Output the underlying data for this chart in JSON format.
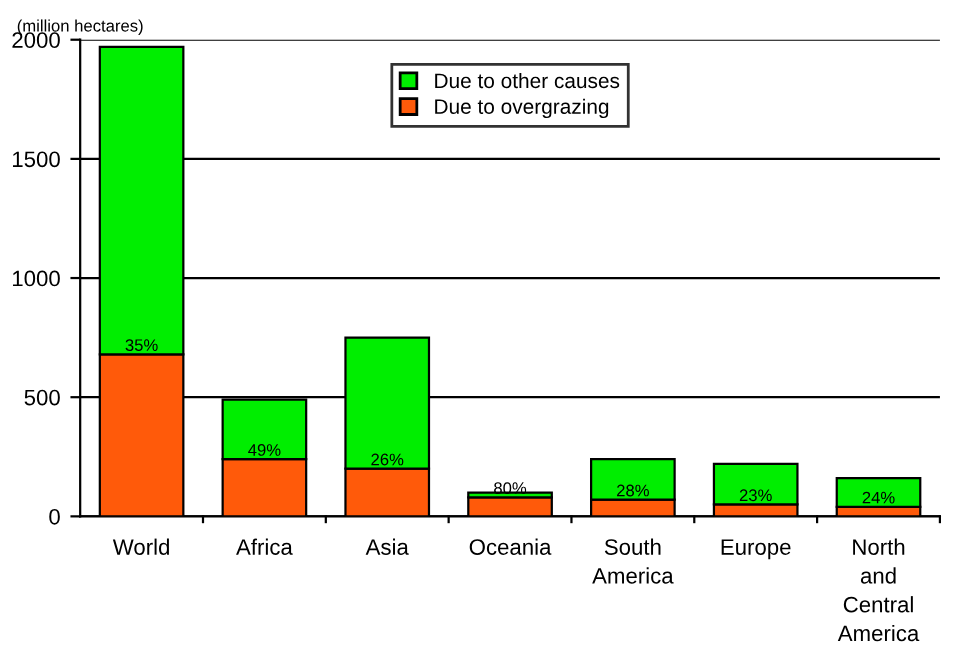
{
  "chart_data": {
    "type": "bar",
    "stacked": true,
    "ylabel": "(million hectares)",
    "categories": [
      "World",
      "Africa",
      "Asia",
      "Oceania",
      "South\nAmerica",
      "Europe",
      "North\nand\nCentral\nAmerica"
    ],
    "series": [
      {
        "name": "Due to overgrazing",
        "color": "#ff5a0a",
        "values": [
          680,
          240,
          200,
          80,
          70,
          50,
          40
        ]
      },
      {
        "name": "Due to other causes",
        "color": "#00ee00",
        "values": [
          1290,
          250,
          550,
          20,
          170,
          170,
          120
        ]
      }
    ],
    "annotations": [
      {
        "text": "35%",
        "x": "World",
        "y": 680
      },
      {
        "text": "49%",
        "x": "Africa",
        "y": 240
      },
      {
        "text": "26%",
        "x": "Asia",
        "y": 200
      },
      {
        "text": "80%",
        "x": "Oceania",
        "y": 80
      },
      {
        "text": "28%",
        "x": "South\nAmerica",
        "y": 70
      },
      {
        "text": "23%",
        "x": "Europe",
        "y": 50
      },
      {
        "text": "24%",
        "x": "North\nand\nCentral\nAmerica",
        "y": 40
      }
    ],
    "ylim": [
      0,
      2000
    ],
    "yticks": [
      0,
      500,
      1000,
      1500,
      2000
    ],
    "grid": "y",
    "legend": "top"
  }
}
